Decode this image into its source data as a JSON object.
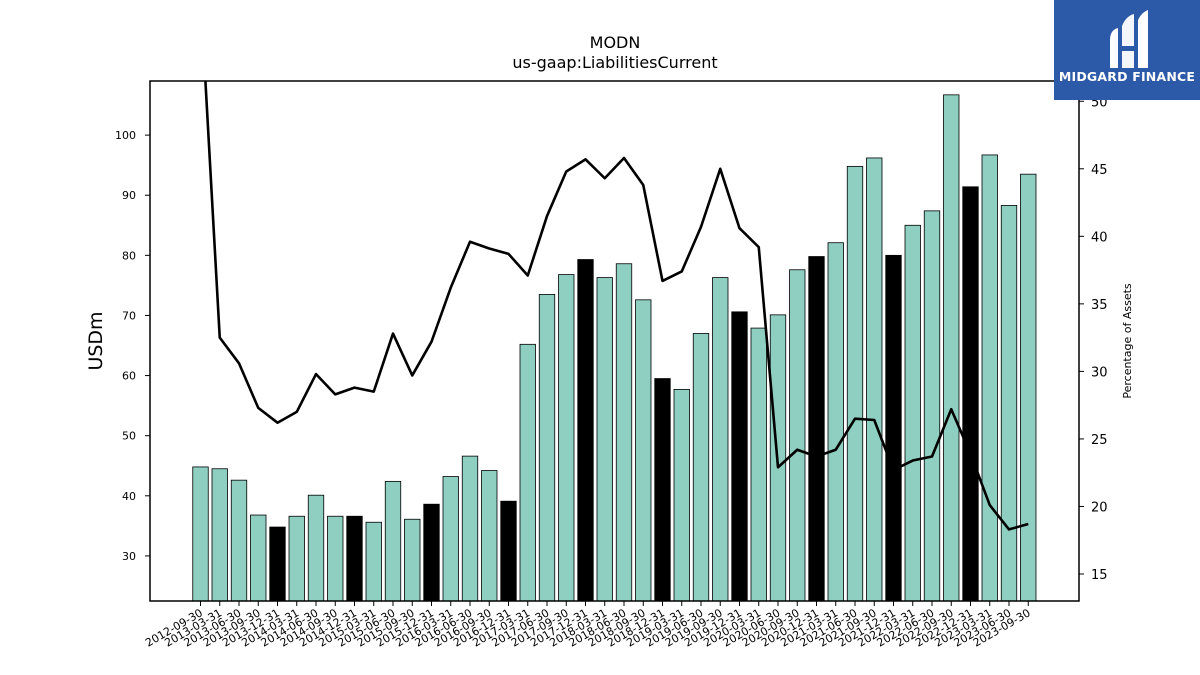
{
  "chart_data": {
    "type": "bar",
    "title": "MODN",
    "subtitle": "us-gaap:LiabilitiesCurrent",
    "ylabel": "USDm",
    "y2label": "Percentage of Assets",
    "ylim": [
      22.5,
      109
    ],
    "y2lim": [
      13,
      51.5
    ],
    "yticks": [
      30,
      40,
      50,
      60,
      70,
      80,
      90,
      100
    ],
    "y2ticks": [
      15,
      20,
      25,
      30,
      35,
      40,
      45,
      50
    ],
    "colors": {
      "bar": "#8ecfc1",
      "bar_highlight": "#000000",
      "line": "#000000"
    },
    "categories": [
      "2012-09-30",
      "2013-03-31",
      "2013-06-30",
      "2013-09-30",
      "2013-12-31",
      "2014-03-31",
      "2014-06-30",
      "2014-09-30",
      "2014-12-31",
      "2015-03-31",
      "2015-06-30",
      "2015-09-30",
      "2015-12-31",
      "2016-03-31",
      "2016-06-30",
      "2016-09-30",
      "2016-12-31",
      "2017-03-31",
      "2017-06-30",
      "2017-09-30",
      "2017-12-31",
      "2018-03-31",
      "2018-06-30",
      "2018-09-30",
      "2018-12-31",
      "2019-03-31",
      "2019-06-30",
      "2019-09-30",
      "2019-12-31",
      "2020-03-31",
      "2020-06-30",
      "2020-09-30",
      "2020-12-31",
      "2021-03-31",
      "2021-06-30",
      "2021-09-30",
      "2021-12-31",
      "2022-03-31",
      "2022-06-30",
      "2022-09-30",
      "2022-12-31",
      "2023-03-31",
      "2023-06-30",
      "2023-09-30"
    ],
    "series": [
      {
        "type": "bar",
        "values": [
          44.8,
          44.5,
          42.6,
          36.8,
          34.8,
          36.6,
          40.1,
          36.6,
          36.6,
          35.6,
          42.4,
          36.1,
          38.6,
          43.2,
          46.6,
          44.2,
          39.1,
          65.2,
          73.5,
          76.8,
          79.3,
          76.3,
          78.6,
          72.6,
          59.5,
          57.7,
          67.0,
          76.3,
          70.6,
          67.9,
          70.1,
          77.6,
          79.8,
          82.1,
          94.8,
          96.2,
          80.0,
          85.0,
          87.4,
          106.7,
          91.4,
          96.7,
          88.3,
          93.5
        ],
        "highlight": [
          false,
          false,
          false,
          false,
          true,
          false,
          false,
          false,
          true,
          false,
          false,
          false,
          true,
          false,
          false,
          false,
          true,
          false,
          false,
          false,
          true,
          false,
          false,
          false,
          true,
          false,
          false,
          false,
          true,
          false,
          false,
          false,
          true,
          false,
          false,
          false,
          true,
          false,
          false,
          false,
          true,
          false,
          false,
          false
        ]
      },
      {
        "type": "line",
        "axis": "right",
        "values": [
          58.0,
          32.5,
          30.6,
          27.3,
          26.2,
          27.0,
          29.8,
          28.3,
          28.8,
          28.5,
          32.8,
          29.7,
          32.2,
          36.2,
          39.6,
          39.1,
          38.7,
          37.1,
          41.5,
          44.8,
          45.7,
          44.3,
          45.8,
          43.8,
          36.7,
          37.4,
          40.7,
          45.0,
          40.6,
          39.2,
          22.9,
          24.2,
          23.7,
          24.2,
          26.5,
          26.4,
          22.7,
          23.4,
          23.7,
          27.2,
          23.9,
          20.1,
          18.3,
          18.7
        ]
      }
    ]
  },
  "branding": {
    "logo_text": "MIDGARD FINANCE",
    "logo_icon": "midgard-mark-icon"
  }
}
